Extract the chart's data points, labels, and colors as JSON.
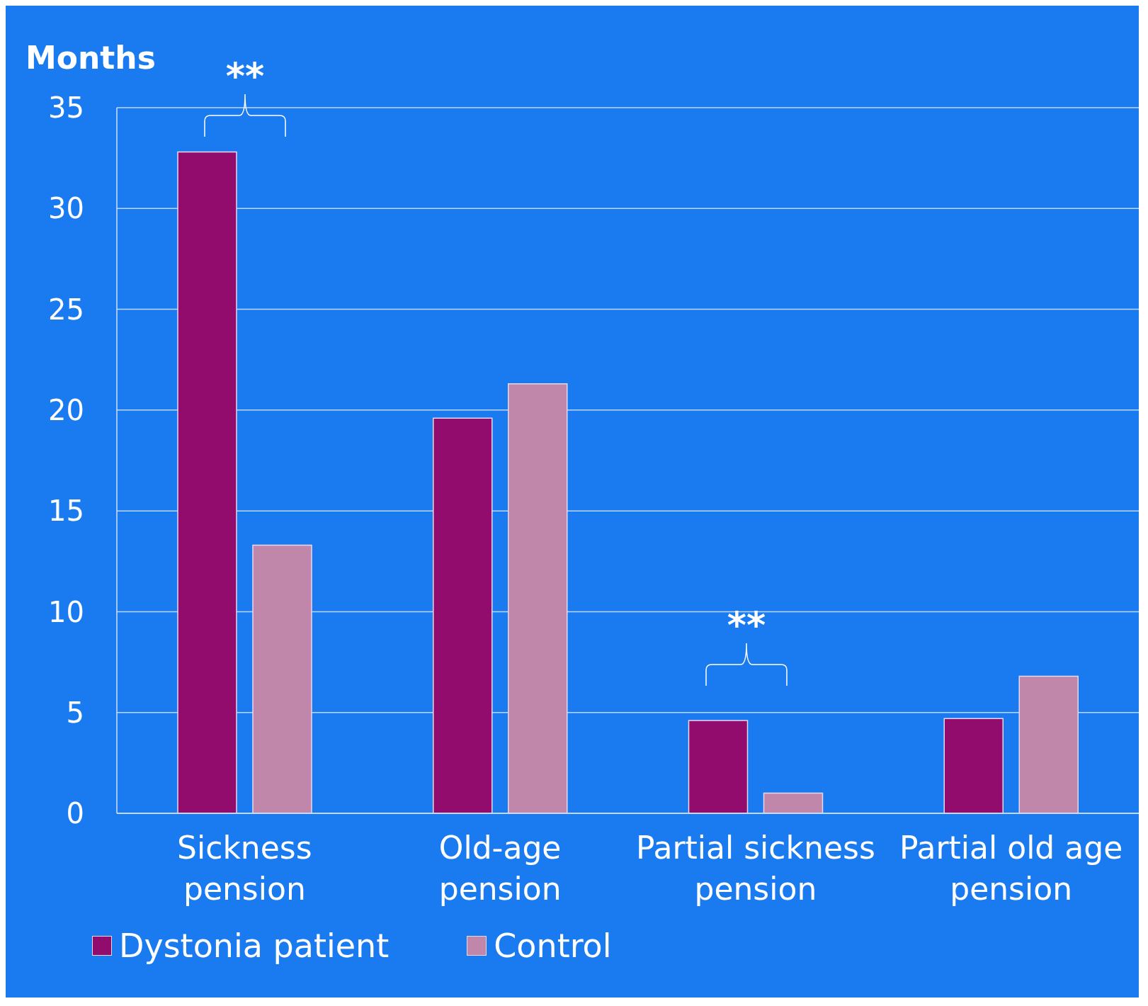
{
  "chart_data": {
    "type": "bar",
    "ylabel": "Months",
    "categories": [
      "Sickness pension",
      "Old-age pension",
      "Partial sickness pension",
      "Partial old age pension"
    ],
    "series": [
      {
        "name": "Dystonia patient",
        "color": "#920c6e",
        "values": [
          32.8,
          19.6,
          4.6,
          4.7
        ]
      },
      {
        "name": "Control",
        "color": "#c087ab",
        "values": [
          13.3,
          21.3,
          1.0,
          6.8
        ]
      }
    ],
    "ylim": [
      0,
      35
    ],
    "yticks": [
      0,
      5,
      10,
      15,
      20,
      25,
      30,
      35
    ],
    "grid": "y",
    "legend": "bottom left",
    "annotations": [
      "**",
      "**"
    ]
  }
}
